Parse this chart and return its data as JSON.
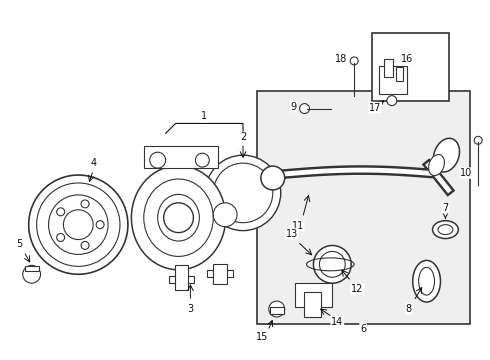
{
  "bg_color": "#ffffff",
  "box6_color": "#efefef",
  "dark_color": "#333333",
  "label_color": "#111111",
  "fig_width": 4.9,
  "fig_height": 3.6,
  "dpi": 100,
  "label_fs": 7.0
}
